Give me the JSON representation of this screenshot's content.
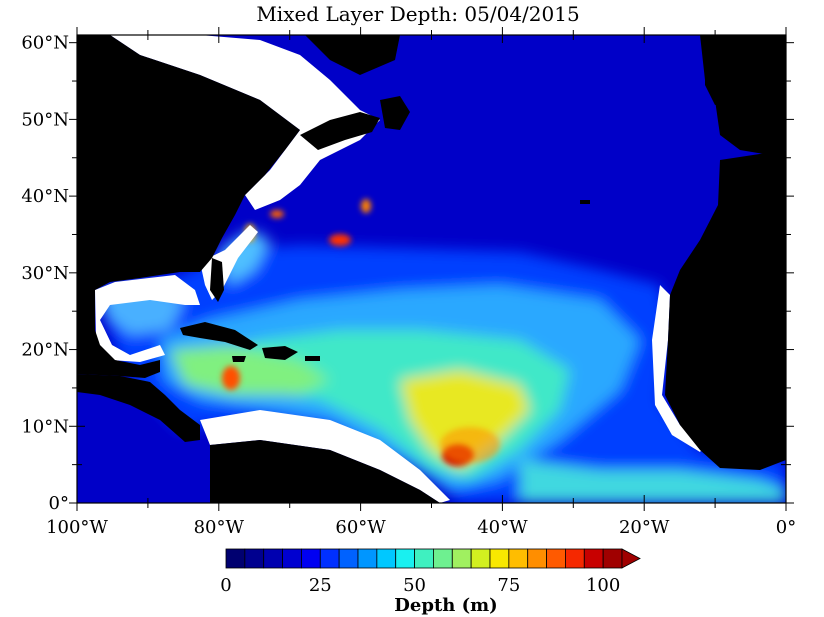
{
  "title": "Mixed Layer Depth: 05/04/2015",
  "y_ticks": [
    {
      "label": "60°N",
      "lat": 60
    },
    {
      "label": "50°N",
      "lat": 50
    },
    {
      "label": "40°N",
      "lat": 40
    },
    {
      "label": "30°N",
      "lat": 30
    },
    {
      "label": "20°N",
      "lat": 20
    },
    {
      "label": "10°N",
      "lat": 10
    },
    {
      "label": "0°",
      "lat": 0
    }
  ],
  "x_ticks": [
    {
      "label": "100°W",
      "lon": -100
    },
    {
      "label": "80°W",
      "lon": -80
    },
    {
      "label": "60°W",
      "lon": -60
    },
    {
      "label": "40°W",
      "lon": -40
    },
    {
      "label": "20°W",
      "lon": -20
    },
    {
      "label": "0°",
      "lon": 0
    }
  ],
  "colorbar": {
    "label": "Depth (m)",
    "tick_labels": [
      "0",
      "25",
      "50",
      "75",
      "100"
    ],
    "tick_values": [
      0,
      25,
      50,
      75,
      100
    ],
    "min": 0,
    "max": 100,
    "step": 5,
    "extend": "max",
    "colors": [
      "#000070",
      "#00008f",
      "#0000b0",
      "#0000d0",
      "#0000f2",
      "#0030ff",
      "#0062ff",
      "#0096ff",
      "#00c8ff",
      "#19f0f0",
      "#3ff0c0",
      "#6ef090",
      "#a0f060",
      "#d2f020",
      "#f8e800",
      "#ffbd00",
      "#ff8e00",
      "#ff5a00",
      "#f52800",
      "#c80000",
      "#a00000"
    ]
  },
  "map": {
    "lon_range": [
      -100,
      0
    ],
    "lat_range": [
      0,
      61
    ],
    "land_color": "#000000",
    "background_color": "#0000d0",
    "no_data_color": "#ffffff"
  }
}
